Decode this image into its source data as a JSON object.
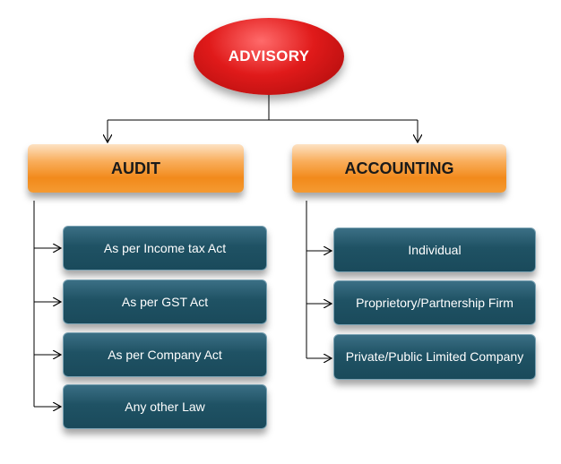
{
  "diagram": {
    "root": {
      "label": "ADVISORY"
    },
    "categories": [
      {
        "label": "AUDIT",
        "items": [
          "As per Income tax Act",
          "As per  GST Act",
          "As per  Company Act",
          "Any other Law"
        ]
      },
      {
        "label": "ACCOUNTING",
        "items": [
          "Individual",
          "Proprietory/Partnership Firm",
          "Private/Public Limited Company"
        ]
      }
    ]
  },
  "colors": {
    "root_fill": "#e01a1a",
    "category_fill": "#f28a1b",
    "item_fill": "#1f5264",
    "connector": "#000000"
  }
}
